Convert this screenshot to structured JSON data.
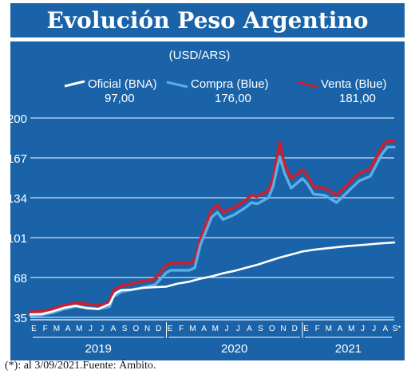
{
  "title": "Evolución Peso Argentino",
  "footnote": "(*): al 3/09/2021.Fuente: Ámbito.",
  "colors": {
    "panel": "#1a63a8",
    "grid": "#ffffff",
    "oficial": "#ffffff",
    "compra": "#5aaee6",
    "venta": "#cc1f2f"
  },
  "chart_data": {
    "type": "line",
    "unit_label": "(USD/ARS)",
    "legend_position": "top",
    "ylim": [
      35,
      200
    ],
    "y_ticks": [
      "200",
      "167",
      "134",
      "101",
      "68",
      "35"
    ],
    "month_labels": [
      "E",
      "F",
      "M",
      "A",
      "M",
      "J",
      "J",
      "A",
      "S",
      "O",
      "N",
      "D",
      "E",
      "F",
      "M",
      "A",
      "M",
      "J",
      "J",
      "A",
      "S",
      "O",
      "N",
      "D",
      "E",
      "F",
      "M",
      "A",
      "M",
      "J",
      "J",
      "A",
      "S*"
    ],
    "year_labels": [
      {
        "label": "2019",
        "from_month": 0,
        "to_month": 12
      },
      {
        "label": "2020",
        "from_month": 12,
        "to_month": 24
      },
      {
        "label": "2021",
        "from_month": 24,
        "to_month": 32.1
      }
    ],
    "x_unit": "month index (0 = enero 2019)",
    "series": [
      {
        "name": "Oficial (BNA)",
        "last_value_label": "97,00",
        "x": [
          0,
          1,
          2,
          3,
          4,
          5,
          6,
          7,
          7.5,
          8,
          9,
          10,
          11,
          12,
          13,
          14,
          15,
          16,
          17,
          18,
          19,
          20,
          21,
          22,
          23,
          24,
          25,
          26,
          27,
          28,
          29,
          30,
          31,
          32.1
        ],
        "y": [
          37.5,
          37.8,
          40,
          43,
          44.7,
          42.5,
          42,
          46,
          55,
          57.5,
          58,
          59.5,
          60,
          60.5,
          63,
          64.5,
          67,
          69,
          71.5,
          73.5,
          76,
          78.5,
          81.5,
          84.5,
          87,
          89.5,
          91,
          92,
          93,
          94,
          94.7,
          95.5,
          96.3,
          97
        ]
      },
      {
        "name": "Compra (Blue)",
        "last_value_label": "176,00",
        "x": [
          0,
          1,
          2,
          3,
          4,
          5,
          6,
          7,
          7.3,
          8,
          9,
          10,
          11,
          12,
          12.4,
          13,
          14,
          14.5,
          15,
          16,
          16.5,
          17,
          18,
          19,
          19.5,
          20,
          21,
          21.4,
          22,
          22.4,
          23,
          24,
          24.4,
          25,
          26,
          27,
          28,
          29,
          29.5,
          30,
          31,
          31.5,
          32.1
        ],
        "y": [
          36.5,
          37,
          39,
          42,
          44,
          43,
          42,
          44,
          52,
          56,
          58,
          60,
          62,
          72,
          74,
          74,
          74,
          76,
          95,
          118,
          122,
          116,
          120,
          126,
          130,
          129,
          134,
          143,
          168,
          155,
          142,
          150,
          146,
          137,
          136,
          130,
          139,
          148,
          150,
          152,
          170,
          176,
          176
        ]
      },
      {
        "name": "Venta (Blue)",
        "last_value_label": "181,00",
        "x": [
          0,
          1,
          2,
          3,
          4,
          5,
          6,
          7,
          7.3,
          8,
          9,
          10,
          11,
          12,
          12.4,
          13,
          14,
          14.5,
          15,
          16,
          16.5,
          17,
          18,
          19,
          19.5,
          20,
          21,
          21.4,
          22,
          22.4,
          23,
          24,
          24.4,
          25,
          26,
          27,
          28,
          29,
          29.5,
          30,
          31,
          31.5,
          32.1
        ],
        "y": [
          39.5,
          40,
          42,
          45,
          47,
          46,
          45,
          47,
          57,
          61,
          63,
          65,
          67,
          78,
          80,
          80,
          80,
          82,
          100,
          124,
          128,
          122,
          126,
          132,
          136,
          135,
          140,
          149,
          180,
          162,
          150,
          157,
          153,
          143,
          142,
          136,
          145,
          154,
          156,
          158,
          176,
          181,
          181
        ]
      }
    ]
  }
}
